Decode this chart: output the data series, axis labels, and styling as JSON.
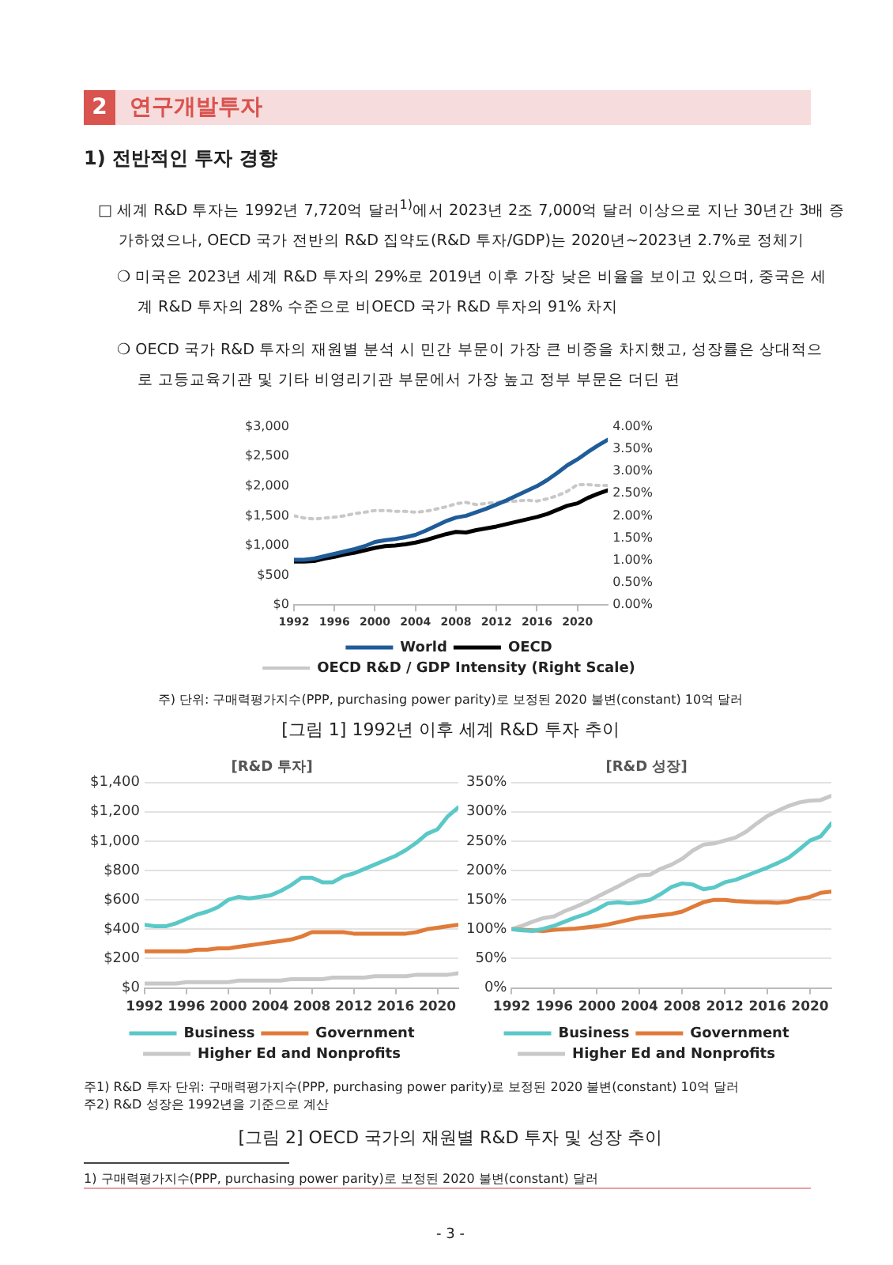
{
  "chart_data": [
    {
      "type": "line",
      "annotations": [
        "2",
        "연구개발투자",
        "1) 전반적인 투자 경향",
        "□ 세계 R&D 투자는 1992년 7,720억 달러$^{1)}$에서 2023년 2조 7,000억 달러 이상으로 지난 30년간 3배 증가하였으나, OECD 국가 전반의 R&D 집약도(R&D 투자/GDP)는 2020년~2023년 2.7%로 정체기",
        "❍ 미국은 2023년 세계 R&D 투자의 29%로 2019년 이후 가장 낮은 비율을 보이고 있으며, 중국은 세계 R&D 투자의 28% 수준으로 비OECD 국가 R&D 투자의 91% 차지",
        "❍ OECD 국가 R&D 투자의 재원별 분석 시 민간 부문이 가장 큰 비중을 차지했고, 성장률은 상대적으로 고등교육기관 및 기타 비영리기관 부문에서 가장 높고 정부 부문은 더딘 편",
        "주) 단위: 구매력평가지수(PPP, purchasing power parity)로 보정된 2020 불변(constant) 10억 달러",
        "[그림 1] 1992년 이후 세계 R&D 투자 추이"
      ],
      "x": [
        1992,
        1993,
        1994,
        1995,
        1996,
        1997,
        1998,
        1999,
        2000,
        2001,
        2002,
        2003,
        2004,
        2005,
        2006,
        2007,
        2008,
        2009,
        2010,
        2011,
        2012,
        2013,
        2014,
        2015,
        2016,
        2017,
        2018,
        2019,
        2020,
        2021,
        2022,
        2023
      ],
      "series": [
        {
          "name": "World",
          "color": "#1f5c99",
          "values": [
            760,
            760,
            780,
            820,
            860,
            900,
            940,
            990,
            1060,
            1090,
            1110,
            1140,
            1180,
            1250,
            1330,
            1410,
            1470,
            1500,
            1560,
            1620,
            1690,
            1760,
            1840,
            1920,
            2000,
            2100,
            2220,
            2350,
            2450,
            2570,
            2680,
            2780
          ]
        },
        {
          "name": "OECD",
          "color": "#000000",
          "values": [
            730,
            730,
            740,
            780,
            810,
            850,
            880,
            920,
            960,
            990,
            1000,
            1020,
            1050,
            1090,
            1140,
            1190,
            1230,
            1220,
            1260,
            1290,
            1320,
            1360,
            1400,
            1440,
            1480,
            1530,
            1600,
            1670,
            1710,
            1800,
            1870,
            1930
          ]
        },
        {
          "name": "OECD R&D / GDP Intensity (Right Scale)",
          "color": "#c8c8c8",
          "axis": "y2",
          "line_style": "dotted",
          "values": [
            2.0,
            1.95,
            1.93,
            1.95,
            1.97,
            2.0,
            2.05,
            2.08,
            2.12,
            2.12,
            2.1,
            2.1,
            2.08,
            2.1,
            2.15,
            2.2,
            2.27,
            2.3,
            2.25,
            2.28,
            2.3,
            2.32,
            2.33,
            2.35,
            2.33,
            2.38,
            2.45,
            2.55,
            2.7,
            2.7,
            2.68,
            2.68
          ]
        }
      ],
      "xlim": [
        1992,
        2023
      ],
      "xticks": [
        1992,
        1996,
        2000,
        2004,
        2008,
        2012,
        2016,
        2020
      ],
      "ylim": [
        0,
        3000
      ],
      "yticks": [
        {
          "value": 0,
          "label": "$0"
        },
        {
          "value": 500,
          "label": "$500"
        },
        {
          "value": 1000,
          "label": "$1,000"
        },
        {
          "value": 1500,
          "label": "$1,500"
        },
        {
          "value": 2000,
          "label": "$2,000"
        },
        {
          "value": 2500,
          "label": "$2,500"
        },
        {
          "value": 3000,
          "label": "$3,000"
        }
      ],
      "y2lim": [
        0,
        4
      ],
      "y2ticks": [
        {
          "value": 0,
          "label": "0.00%"
        },
        {
          "value": 0.5,
          "label": "0.50%"
        },
        {
          "value": 1,
          "label": "1.00%"
        },
        {
          "value": 1.5,
          "label": "1.50%"
        },
        {
          "value": 2,
          "label": "2.00%"
        },
        {
          "value": 2.5,
          "label": "2.50%"
        },
        {
          "value": 3,
          "label": "3.00%"
        },
        {
          "value": 3.5,
          "label": "3.50%"
        },
        {
          "value": 4,
          "label": "4.00%"
        }
      ],
      "grid": false,
      "legend": "bottom",
      "marker": "none"
    },
    {
      "type": "line",
      "title": "[R&D 투자]",
      "x": [
        1992,
        1993,
        1994,
        1995,
        1996,
        1997,
        1998,
        1999,
        2000,
        2001,
        2002,
        2003,
        2004,
        2005,
        2006,
        2007,
        2008,
        2009,
        2010,
        2011,
        2012,
        2013,
        2014,
        2015,
        2016,
        2017,
        2018,
        2019,
        2020,
        2021,
        2022
      ],
      "series": [
        {
          "name": "Business",
          "color": "#5bc8c8",
          "values": [
            430,
            420,
            420,
            440,
            470,
            500,
            520,
            550,
            600,
            620,
            610,
            620,
            630,
            660,
            700,
            750,
            750,
            720,
            720,
            760,
            780,
            810,
            840,
            870,
            900,
            940,
            990,
            1050,
            1080,
            1170,
            1230
          ]
        },
        {
          "name": "Government",
          "color": "#e07b39",
          "values": [
            250,
            250,
            250,
            250,
            250,
            260,
            260,
            270,
            270,
            280,
            290,
            300,
            310,
            320,
            330,
            350,
            380,
            380,
            380,
            380,
            370,
            370,
            370,
            370,
            370,
            370,
            380,
            400,
            410,
            420,
            430
          ]
        },
        {
          "name": "Higher Ed and Nonprofits",
          "color": "#c8c8c8",
          "values": [
            30,
            30,
            30,
            30,
            40,
            40,
            40,
            40,
            40,
            50,
            50,
            50,
            50,
            50,
            60,
            60,
            60,
            60,
            70,
            70,
            70,
            70,
            80,
            80,
            80,
            80,
            90,
            90,
            90,
            90,
            100
          ]
        }
      ],
      "xlim": [
        1992,
        2022
      ],
      "xticks": [
        1992,
        1996,
        2000,
        2004,
        2008,
        2012,
        2016,
        2020
      ],
      "ylim": [
        0,
        1400
      ],
      "yticks": [
        {
          "value": 0,
          "label": "$0"
        },
        {
          "value": 200,
          "label": "$200"
        },
        {
          "value": 400,
          "label": "$400"
        },
        {
          "value": 600,
          "label": "$600"
        },
        {
          "value": 800,
          "label": "$800"
        },
        {
          "value": 1000,
          "label": "$1,000"
        },
        {
          "value": 1200,
          "label": "$1,200"
        },
        {
          "value": 1400,
          "label": "$1,400"
        }
      ],
      "grid": "y",
      "legend": "bottom",
      "marker": "none"
    },
    {
      "type": "line",
      "title": "[R&D 성장]",
      "annotations": [
        "주1) R&D 투자 단위: 구매력평가지수(PPP, purchasing power parity)로 보정된 2020 불변(constant) 10억 달러",
        "주2) R&D 성장은 1992년을 기준으로 계산",
        "[그림 2] OECD 국가의 재원별 R&D 투자 및 성장 추이",
        "1) 구매력평가지수(PPP, purchasing power parity)로 보정된 2020 불변(constant) 달러",
        "- 3 -"
      ],
      "x": [
        1992,
        1993,
        1994,
        1995,
        1996,
        1997,
        1998,
        1999,
        2000,
        2001,
        2002,
        2003,
        2004,
        2005,
        2006,
        2007,
        2008,
        2009,
        2010,
        2011,
        2012,
        2013,
        2014,
        2015,
        2016,
        2017,
        2018,
        2019,
        2020,
        2021,
        2022
      ],
      "series": [
        {
          "name": "Business",
          "color": "#5bc8c8",
          "values": [
            100,
            98,
            97,
            101,
            106,
            113,
            120,
            126,
            134,
            144,
            146,
            144,
            146,
            150,
            160,
            172,
            178,
            176,
            168,
            171,
            180,
            184,
            191,
            198,
            205,
            213,
            222,
            236,
            251,
            258,
            280
          ]
        },
        {
          "name": "Government",
          "color": "#e07b39",
          "values": [
            100,
            99,
            98,
            97,
            99,
            100,
            101,
            103,
            105,
            108,
            112,
            116,
            120,
            122,
            124,
            126,
            130,
            138,
            146,
            150,
            150,
            148,
            147,
            146,
            146,
            145,
            147,
            152,
            155,
            162,
            164
          ]
        },
        {
          "name": "Higher Ed and Nonprofits",
          "color": "#c8c8c8",
          "values": [
            100,
            106,
            113,
            119,
            122,
            131,
            138,
            146,
            155,
            164,
            173,
            183,
            192,
            193,
            203,
            210,
            220,
            234,
            244,
            246,
            251,
            256,
            266,
            280,
            293,
            302,
            310,
            316,
            319,
            320,
            327
          ]
        }
      ],
      "xlim": [
        1992,
        2022
      ],
      "xticks": [
        1992,
        1996,
        2000,
        2004,
        2008,
        2012,
        2016,
        2020
      ],
      "ylim": [
        0,
        350
      ],
      "yticks": [
        {
          "value": 0,
          "label": "0%"
        },
        {
          "value": 50,
          "label": "50%"
        },
        {
          "value": 100,
          "label": "100%"
        },
        {
          "value": 150,
          "label": "150%"
        },
        {
          "value": 200,
          "label": "200%"
        },
        {
          "value": 250,
          "label": "250%"
        },
        {
          "value": 300,
          "label": "300%"
        },
        {
          "value": 350,
          "label": "350%"
        }
      ],
      "grid": "y",
      "legend": "bottom",
      "marker": "none"
    }
  ]
}
